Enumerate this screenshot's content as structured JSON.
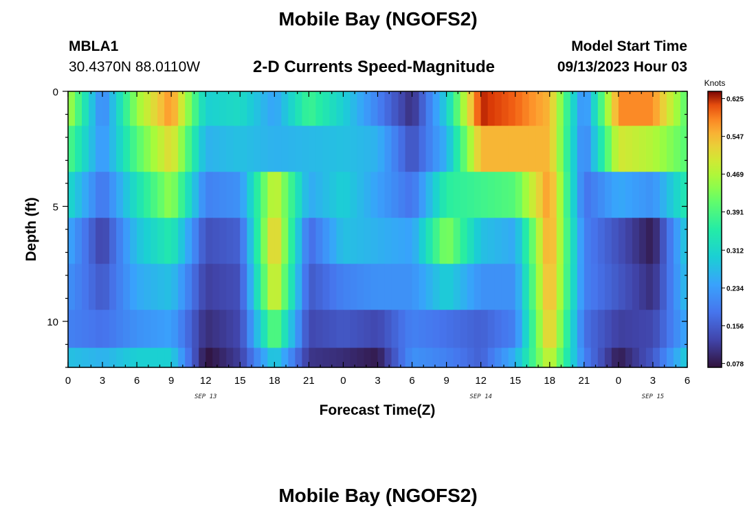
{
  "header": {
    "title": "Mobile Bay (NGOFS2)",
    "station_id": "MBLA1",
    "station_coords": "30.4370N  88.0110W",
    "subtitle": "2-D Currents Speed-Magnitude",
    "model_start_label": "Model Start Time",
    "model_start_value": "09/13/2023 Hour 03"
  },
  "footer": {
    "title": "Mobile Bay (NGOFS2)"
  },
  "chart_data": {
    "type": "heatmap",
    "title": "2-D Currents Speed-Magnitude",
    "xlabel": "Forecast Time(Z)",
    "ylabel": "Depth (ft)",
    "x_ticks": [
      "0",
      "3",
      "6",
      "9",
      "12",
      "15",
      "18",
      "21",
      "0",
      "3",
      "6",
      "9",
      "12",
      "15",
      "18",
      "21",
      "0",
      "3",
      "6"
    ],
    "date_labels": [
      {
        "label": "SEP 13",
        "at_hour": 12
      },
      {
        "label": "SEP 14",
        "at_hour": 36
      },
      {
        "label": "SEP 15",
        "at_hour": 51
      }
    ],
    "y_ticks": [
      "0",
      "5",
      "10"
    ],
    "ylim": [
      0,
      12
    ],
    "xlim_hours": [
      0,
      54
    ],
    "colorbar": {
      "title": "Knots",
      "ticks": [
        "0.625",
        "0.547",
        "0.469",
        "0.391",
        "0.312",
        "0.234",
        "0.156",
        "0.078"
      ],
      "range": [
        0.07,
        0.64
      ]
    },
    "time_hours": [
      0,
      3,
      6,
      9,
      12,
      15,
      18,
      21,
      24,
      27,
      30,
      33,
      36,
      39,
      42,
      45,
      48,
      51,
      54
    ],
    "depth_rows_ft": [
      0.5,
      2.5,
      4.5,
      6.5,
      8.5,
      10.5,
      11.8
    ],
    "values": [
      [
        0.47,
        0.2,
        0.45,
        0.58,
        0.3,
        0.32,
        0.24,
        0.38,
        0.3,
        0.2,
        0.1,
        0.3,
        0.63,
        0.6,
        0.55,
        0.2,
        0.58,
        0.58,
        0.4
      ],
      [
        0.4,
        0.22,
        0.4,
        0.52,
        0.26,
        0.28,
        0.26,
        0.27,
        0.28,
        0.26,
        0.14,
        0.26,
        0.55,
        0.55,
        0.55,
        0.19,
        0.5,
        0.47,
        0.4
      ],
      [
        0.32,
        0.18,
        0.33,
        0.45,
        0.2,
        0.22,
        0.5,
        0.25,
        0.3,
        0.24,
        0.18,
        0.36,
        0.38,
        0.4,
        0.58,
        0.18,
        0.25,
        0.22,
        0.35
      ],
      [
        0.25,
        0.12,
        0.28,
        0.35,
        0.14,
        0.16,
        0.55,
        0.17,
        0.28,
        0.26,
        0.24,
        0.44,
        0.28,
        0.25,
        0.58,
        0.2,
        0.14,
        0.08,
        0.3
      ],
      [
        0.22,
        0.15,
        0.25,
        0.28,
        0.12,
        0.14,
        0.52,
        0.15,
        0.2,
        0.22,
        0.22,
        0.3,
        0.22,
        0.22,
        0.57,
        0.2,
        0.15,
        0.1,
        0.28
      ],
      [
        0.2,
        0.18,
        0.22,
        0.24,
        0.1,
        0.13,
        0.42,
        0.13,
        0.15,
        0.13,
        0.2,
        0.18,
        0.16,
        0.2,
        0.55,
        0.18,
        0.12,
        0.13,
        0.25
      ],
      [
        0.28,
        0.26,
        0.3,
        0.3,
        0.07,
        0.12,
        0.3,
        0.11,
        0.1,
        0.08,
        0.22,
        0.2,
        0.16,
        0.26,
        0.5,
        0.2,
        0.08,
        0.15,
        0.3
      ]
    ]
  }
}
